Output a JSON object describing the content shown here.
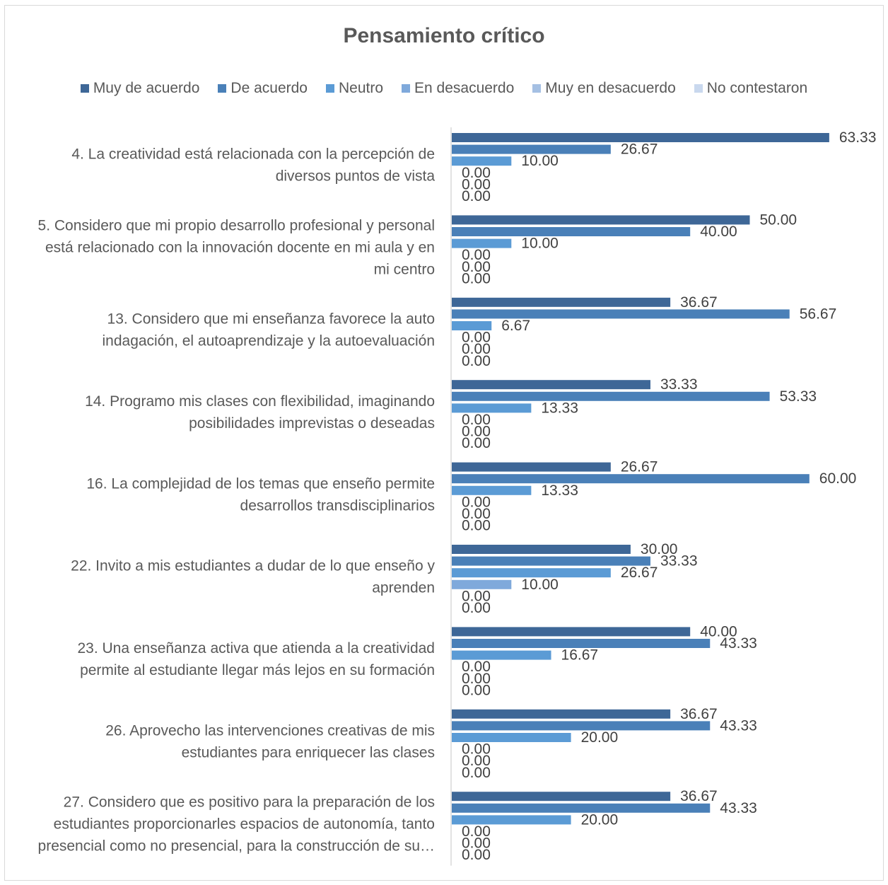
{
  "chart_data": {
    "type": "bar",
    "orientation": "horizontal",
    "title": "Pensamiento crítico",
    "xlabel": "",
    "ylabel": "",
    "legend_position": "top",
    "grid": false,
    "xlim": [
      0,
      65
    ],
    "categories": [
      [
        "4. La creatividad está relacionada con la percepción de",
        "diversos puntos de vista"
      ],
      [
        "5. Considero que mi propio desarrollo profesional y personal",
        "está relacionado con la innovación docente en mi aula y en",
        "mi centro"
      ],
      [
        "13. Considero que mi enseñanza favorece la auto",
        "indagación, el autoaprendizaje y la autoevaluación"
      ],
      [
        "14. Programo mis clases con flexibilidad, imaginando",
        "posibilidades imprevistas o deseadas"
      ],
      [
        "16. La complejidad de los temas que enseño permite",
        "desarrollos transdisciplinarios"
      ],
      [
        "22. Invito a mis estudiantes a dudar de lo que enseño y",
        "aprenden"
      ],
      [
        "23. Una enseñanza activa que atienda a la creatividad",
        "permite al estudiante llegar más lejos en su formación"
      ],
      [
        "26. Aprovecho las intervenciones creativas de mis",
        "estudiantes para enriquecer las clases"
      ],
      [
        "27. Considero que es positivo para la preparación de los",
        "estudiantes proporcionarles espacios de autonomía, tanto",
        "presencial como no presencial, para la construcción de su…"
      ]
    ],
    "series": [
      {
        "name": "Muy de acuerdo",
        "color": "#3e6797",
        "values": [
          63.33,
          50.0,
          36.67,
          33.33,
          26.67,
          30.0,
          40.0,
          36.67,
          36.67
        ],
        "labels": [
          "63.33",
          "50.00",
          "36.67",
          "33.33",
          "26.67",
          "30.00",
          "40.00",
          "36.67",
          "36.67"
        ]
      },
      {
        "name": "De acuerdo",
        "color": "#4a80b8",
        "values": [
          26.67,
          40.0,
          56.67,
          53.33,
          60.0,
          33.33,
          43.33,
          43.33,
          43.33
        ],
        "labels": [
          "26.67",
          "40.00",
          "56.67",
          "53.33",
          "60.00",
          "33.33",
          "43.33",
          "43.33",
          "43.33"
        ]
      },
      {
        "name": "Neutro",
        "color": "#5b9bd5",
        "values": [
          10.0,
          10.0,
          6.67,
          13.33,
          13.33,
          26.67,
          16.67,
          20.0,
          20.0
        ],
        "labels": [
          "10.00",
          "10.00",
          "6.67",
          "13.33",
          "13.33",
          "26.67",
          "16.67",
          "20.00",
          "20.00"
        ]
      },
      {
        "name": "En desacuerdo",
        "color": "#7fa9db",
        "values": [
          0.0,
          0.0,
          0.0,
          0.0,
          0.0,
          10.0,
          0.0,
          0.0,
          0.0
        ],
        "labels": [
          "0.00",
          "0.00",
          "0.00",
          "0.00",
          "0.00",
          "10.00",
          "0.00",
          "0.00",
          "0.00"
        ]
      },
      {
        "name": "Muy en desacuerdo",
        "color": "#a5c0e3",
        "values": [
          0,
          0,
          0,
          0,
          0,
          0,
          0,
          0,
          0
        ],
        "labels": [
          "0.00",
          "0.00",
          "0.00",
          "0.00",
          "0.00",
          "0.00",
          "0.00",
          "0.00",
          "0.00"
        ]
      },
      {
        "name": "No contestaron",
        "color": "#c9d8ee",
        "values": [
          0,
          0,
          0,
          0,
          0,
          0,
          0,
          0,
          0
        ],
        "labels": [
          "0.00",
          "0.00",
          "0.00",
          "0.00",
          "0.00",
          "0.00",
          "0.00",
          "0.00",
          "0.00"
        ]
      }
    ]
  }
}
